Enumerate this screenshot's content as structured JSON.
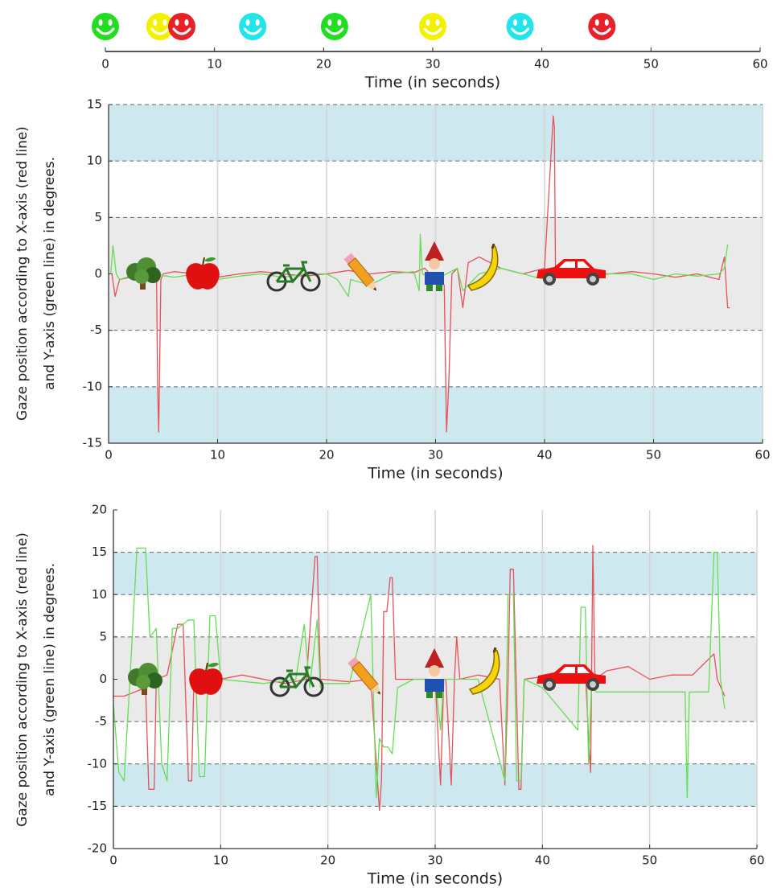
{
  "chart_data": [
    {
      "type": "scatter",
      "x": [
        0,
        5,
        7,
        13.5,
        21,
        30,
        38,
        45.5
      ],
      "colors": [
        "#22dd22",
        "#f2f200",
        "#e8202a",
        "#22e5ea",
        "#22dd22",
        "#f2f200",
        "#22e5ea",
        "#e8202a"
      ],
      "xlim": [
        0,
        60
      ],
      "xticks": [
        0,
        10,
        20,
        30,
        40,
        50,
        60
      ],
      "xlabel": "Time (in seconds)"
    },
    {
      "type": "line",
      "xlim": [
        0,
        60
      ],
      "ylim": [
        -15,
        15
      ],
      "xticks": [
        0,
        10,
        20,
        30,
        40,
        50,
        60
      ],
      "yticks": [
        -15,
        -10,
        -5,
        0,
        5,
        10,
        15
      ],
      "grid": "x",
      "xlabel": "Time (in seconds)",
      "ylabel": [
        "Gaze position according to X-axis (red line)",
        "and Y-axis (green line) in degrees."
      ],
      "bands": [
        {
          "from": 10,
          "to": 15,
          "color": "#add8e6"
        },
        {
          "from": -5,
          "to": 5,
          "color": "#dcdcdc"
        },
        {
          "from": -15,
          "to": -10,
          "color": "#add8e6"
        }
      ],
      "series": [
        {
          "color": "#e8505a",
          "x": [
            0.3,
            0.6,
            1,
            2,
            3,
            4,
            4.4,
            4.5,
            4.6,
            4.8,
            5,
            6,
            8,
            10,
            12,
            14,
            16,
            18,
            20,
            22,
            24,
            26,
            28,
            29,
            30,
            30.8,
            31,
            31.2,
            31.5,
            32,
            32.5,
            33,
            34,
            36,
            38,
            40,
            40.8,
            40.9,
            41,
            41.1,
            42,
            44,
            46,
            48,
            50,
            52,
            54,
            56,
            56.5,
            56.8,
            57
          ],
          "values": [
            0,
            -2,
            -0.5,
            -0.3,
            -0.2,
            0,
            0,
            -10,
            -14,
            -0.5,
            0,
            0.2,
            0,
            -0.3,
            0,
            0.2,
            0,
            -0.2,
            0,
            0.3,
            0,
            0.2,
            0.1,
            0.5,
            -0.5,
            -1,
            -14,
            -10,
            0,
            0.5,
            -3,
            1,
            1.5,
            0.5,
            0,
            0.5,
            14,
            13,
            0.3,
            0,
            0.2,
            0,
            0,
            0.2,
            0,
            -0.3,
            0,
            -0.5,
            1.5,
            -3,
            -3
          ]
        },
        {
          "color": "#66dd55",
          "x": [
            0.2,
            0.4,
            0.7,
            1,
            2,
            4,
            6,
            8,
            10,
            12,
            14,
            16,
            18,
            20,
            21,
            22,
            22.2,
            24,
            26,
            28,
            28.5,
            28.6,
            28.8,
            30,
            32,
            32.5,
            34,
            36,
            38,
            40,
            42,
            44,
            46,
            48,
            50,
            52,
            54,
            56,
            56.5,
            56.8
          ],
          "values": [
            0,
            2.5,
            0,
            -0.5,
            -0.2,
            0,
            -0.3,
            0,
            -0.5,
            -0.2,
            0,
            -0.3,
            0,
            0,
            -0.5,
            -2,
            -0.5,
            -1,
            0,
            0.2,
            -1.5,
            3.5,
            0,
            -0.5,
            0.5,
            -1.5,
            0,
            0.5,
            0,
            -0.5,
            0,
            -0.3,
            0,
            0,
            -0.5,
            0,
            -0.2,
            0,
            0.5,
            2.6
          ]
        }
      ]
    },
    {
      "type": "line",
      "xlim": [
        0,
        60
      ],
      "ylim": [
        -20,
        20
      ],
      "xticks": [
        0,
        10,
        20,
        30,
        40,
        50,
        60
      ],
      "yticks": [
        -20,
        -15,
        -10,
        -5,
        0,
        5,
        10,
        15,
        20
      ],
      "grid": "x",
      "xlabel": "Time (in seconds)",
      "ylabel": [
        "Gaze position according to X-axis (red line)",
        "and Y-axis (green line) in degrees."
      ],
      "bands": [
        {
          "from": 10,
          "to": 15,
          "color": "#add8e6"
        },
        {
          "from": -5,
          "to": 5,
          "color": "#dcdcdc"
        },
        {
          "from": -15,
          "to": -10,
          "color": "#add8e6"
        }
      ],
      "series": [
        {
          "color": "#e8505a",
          "x": [
            0,
            1,
            2,
            3,
            3.3,
            3.8,
            4,
            5,
            6,
            6.5,
            7,
            7.3,
            7.5,
            8,
            10,
            12,
            14,
            16,
            18,
            18.8,
            19,
            19.3,
            19.5,
            22,
            24,
            24.8,
            25,
            25.2,
            25.5,
            25.8,
            26,
            26.3,
            28,
            30,
            30.5,
            30.8,
            31,
            31.5,
            31.8,
            32,
            32.3,
            34,
            36,
            36.5,
            36.8,
            37,
            37.3,
            37.8,
            38,
            38.3,
            40,
            42,
            44,
            44.3,
            44.5,
            44.7,
            44.9,
            46,
            48,
            50,
            52,
            54,
            56,
            56.3,
            57
          ],
          "values": [
            -2,
            -2,
            -1.5,
            -1,
            -13,
            -13,
            0,
            0.5,
            6.5,
            6.5,
            -12,
            -12,
            0,
            0.5,
            0,
            0.5,
            0,
            -0.5,
            0,
            14.5,
            14.5,
            0,
            0,
            -0.3,
            0,
            -15.5,
            -12,
            8,
            8,
            12,
            12,
            0,
            0,
            0,
            -12.5,
            0,
            0,
            -12.5,
            0,
            5,
            0,
            0.5,
            0,
            -12.5,
            0,
            13,
            13,
            -13,
            -13,
            0,
            0.3,
            0.5,
            1,
            -6.8,
            -11,
            15.8,
            0,
            1,
            1.5,
            0,
            0.5,
            0.5,
            3,
            0,
            -2
          ]
        },
        {
          "color": "#66dd55",
          "x": [
            0,
            0.5,
            1,
            1.5,
            2.2,
            2.5,
            3,
            3.4,
            4,
            4.5,
            5,
            5.5,
            6,
            7,
            7.5,
            8,
            8.5,
            9,
            9.5,
            10,
            14,
            17,
            17.8,
            18.3,
            19,
            19.3,
            19.6,
            22,
            24,
            24.5,
            24.8,
            25.2,
            25.6,
            26,
            26.5,
            28,
            30,
            30.5,
            30.8,
            34,
            36.5,
            36.8,
            37.3,
            37.6,
            38,
            38.3,
            40,
            43.3,
            43.6,
            44,
            44.3,
            44.6,
            45,
            50,
            53.3,
            53.5,
            53.7,
            55.5,
            56,
            56.3,
            56.6,
            57
          ],
          "values": [
            -3,
            -11,
            -12,
            -1,
            15.5,
            15.5,
            15.5,
            5,
            6,
            -10,
            -12,
            6,
            6,
            7,
            7,
            -11.5,
            -11.5,
            7.5,
            7.5,
            0,
            -0.5,
            0,
            6.5,
            -1,
            7,
            -1,
            -0.5,
            -0.5,
            10,
            -14,
            -7,
            -8,
            -8,
            -8.8,
            -1,
            0,
            0,
            -6,
            0,
            0,
            -12,
            10,
            10,
            -12,
            -12,
            0,
            -1,
            -6,
            8.5,
            8.5,
            -10,
            0,
            -1.5,
            -1.5,
            -1.5,
            -14,
            -1.5,
            -1.5,
            15,
            15,
            0,
            -3.5
          ]
        }
      ]
    }
  ]
}
